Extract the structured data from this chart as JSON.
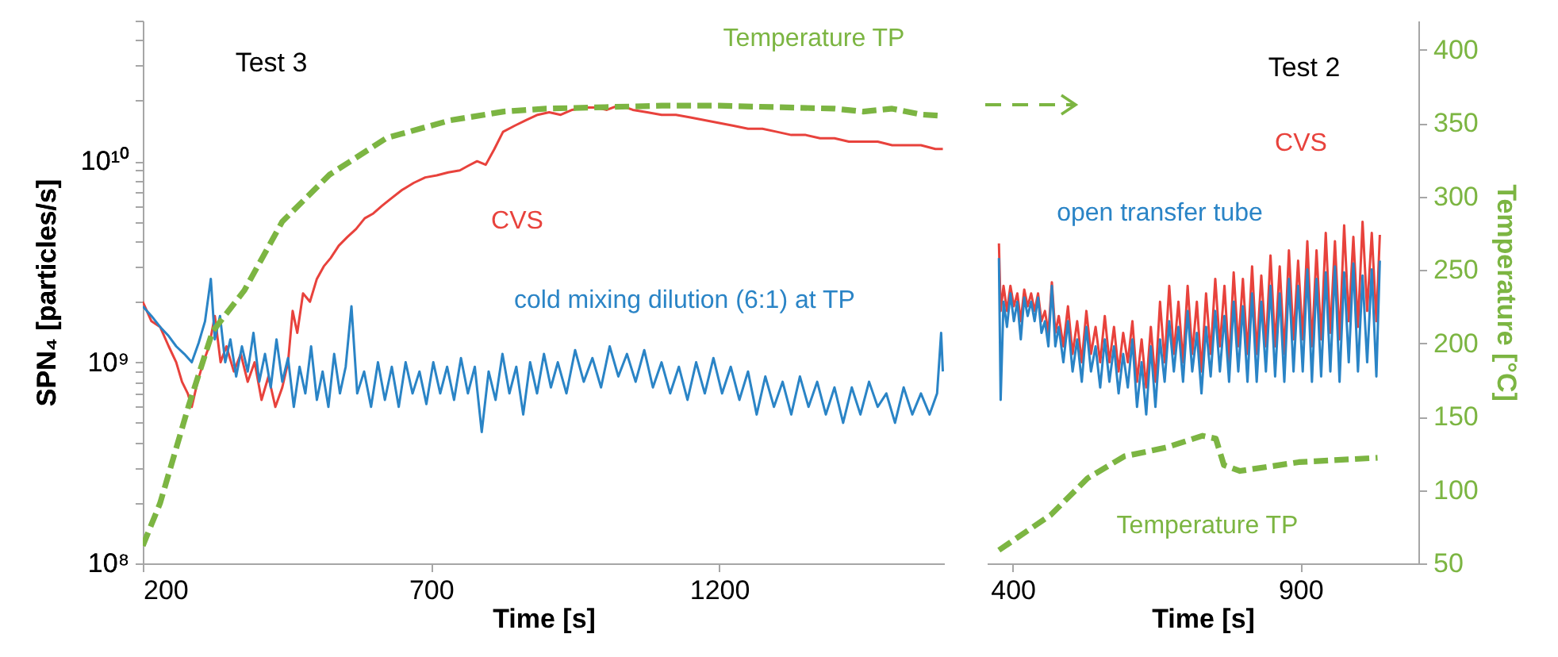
{
  "chart_data": [
    {
      "type": "line",
      "title": "Test 3",
      "xlabel": "Time [s]",
      "ylabel": "SPN₄ [particles/s]",
      "log": "y",
      "xlim": [
        200,
        1590
      ],
      "xticks": [
        200,
        700,
        1200
      ],
      "ylim": [
        100000000.0,
        50000000000.0
      ],
      "yticks": [
        {
          "value": 100000000.0,
          "label": "10⁸"
        },
        {
          "value": 200000000.0,
          "label": null
        },
        {
          "value": 300000000.0,
          "label": null
        },
        {
          "value": 400000000.0,
          "label": null
        },
        {
          "value": 500000000.0,
          "label": null
        },
        {
          "value": 600000000.0,
          "label": null
        },
        {
          "value": 700000000.0,
          "label": null
        },
        {
          "value": 800000000.0,
          "label": null
        },
        {
          "value": 900000000.0,
          "label": null
        },
        {
          "value": 1000000000.0,
          "label": "10⁹"
        },
        {
          "value": 2000000000.0,
          "label": null
        },
        {
          "value": 3000000000.0,
          "label": null
        },
        {
          "value": 4000000000.0,
          "label": null
        },
        {
          "value": 5000000000.0,
          "label": null
        },
        {
          "value": 6000000000.0,
          "label": null
        },
        {
          "value": 7000000000.0,
          "label": null
        },
        {
          "value": 8000000000.0,
          "label": null
        },
        {
          "value": 9000000000.0,
          "label": null
        },
        {
          "value": 10000000000.0,
          "label": "10¹⁰"
        },
        {
          "value": 20000000000.0,
          "label": null
        },
        {
          "value": 30000000000.0,
          "label": null
        },
        {
          "value": 40000000000.0,
          "label": null
        },
        {
          "value": 50000000000.0,
          "label": null
        }
      ],
      "y2lim": [
        50,
        420
      ],
      "tick_labels": [
        "x",
        "y"
      ],
      "series": [
        {
          "name": "CVS",
          "color": "#e8423c",
          "x": [
            200,
            215,
            230,
            245,
            258,
            268,
            278,
            285,
            295,
            305,
            315,
            325,
            335,
            345,
            358,
            370,
            382,
            394,
            406,
            418,
            430,
            442,
            452,
            460,
            468,
            478,
            490,
            502,
            514,
            526,
            540,
            555,
            570,
            585,
            600,
            615,
            630,
            650,
            670,
            690,
            710,
            730,
            750,
            765,
            780,
            795,
            810,
            825,
            845,
            865,
            885,
            905,
            925,
            945,
            965,
            985,
            1005,
            1027,
            1050,
            1075,
            1100,
            1125,
            1150,
            1175,
            1200,
            1225,
            1250,
            1275,
            1300,
            1325,
            1350,
            1375,
            1400,
            1425,
            1450,
            1475,
            1500,
            1525,
            1550,
            1575,
            1588
          ],
          "values": [
            2000000000.0,
            1600000000.0,
            1500000000.0,
            1200000000.0,
            1000000000.0,
            800000000.0,
            700000000.0,
            600000000.0,
            800000000.0,
            1000000000.0,
            1200000000.0,
            1700000000.0,
            1000000000.0,
            1200000000.0,
            900000000.0,
            1100000000.0,
            800000000.0,
            1000000000.0,
            650000000.0,
            850000000.0,
            600000000.0,
            750000000.0,
            1000000000.0,
            1800000000.0,
            1400000000.0,
            2200000000.0,
            2000000000.0,
            2600000000.0,
            3000000000.0,
            3300000000.0,
            3800000000.0,
            4200000000.0,
            4600000000.0,
            5200000000.0,
            5500000000.0,
            6000000000.0,
            6500000000.0,
            7200000000.0,
            7800000000.0,
            8300000000.0,
            8500000000.0,
            8800000000.0,
            9000000000.0,
            9500000000.0,
            10000000000.0,
            9600000000.0,
            11500000000.0,
            14000000000.0,
            15000000000.0,
            16000000000.0,
            17000000000.0,
            17500000000.0,
            17000000000.0,
            18000000000.0,
            18500000000.0,
            18500000000.0,
            18000000000.0,
            19000000000.0,
            18000000000.0,
            17500000000.0,
            17000000000.0,
            17000000000.0,
            16500000000.0,
            16000000000.0,
            15500000000.0,
            15000000000.0,
            14500000000.0,
            14500000000.0,
            14000000000.0,
            13500000000.0,
            13500000000.0,
            13000000000.0,
            13000000000.0,
            12500000000.0,
            12500000000.0,
            12500000000.0,
            12000000000.0,
            12000000000.0,
            12000000000.0,
            11500000000.0,
            11500000000.0
          ]
        },
        {
          "name": "cold mixing dilution (6:1) at TP",
          "color": "#2a84c6",
          "x": [
            200,
            215,
            230,
            245,
            258,
            272,
            285,
            297,
            308,
            318,
            325,
            334,
            343,
            352,
            362,
            372,
            382,
            392,
            402,
            412,
            422,
            432,
            442,
            452,
            462,
            472,
            482,
            492,
            502,
            512,
            522,
            532,
            542,
            552,
            562,
            572,
            584,
            596,
            608,
            620,
            632,
            644,
            656,
            668,
            680,
            692,
            704,
            716,
            728,
            740,
            752,
            764,
            776,
            788,
            800,
            812,
            824,
            836,
            848,
            860,
            872,
            884,
            896,
            908,
            920,
            935,
            950,
            965,
            980,
            995,
            1010,
            1025,
            1040,
            1055,
            1070,
            1085,
            1100,
            1115,
            1130,
            1145,
            1160,
            1175,
            1190,
            1205,
            1220,
            1235,
            1250,
            1265,
            1280,
            1295,
            1310,
            1325,
            1340,
            1355,
            1370,
            1385,
            1400,
            1415,
            1430,
            1445,
            1460,
            1475,
            1490,
            1505,
            1520,
            1535,
            1550,
            1565,
            1578,
            1585,
            1588
          ],
          "values": [
            1900000000.0,
            1700000000.0,
            1500000000.0,
            1350000000.0,
            1200000000.0,
            1100000000.0,
            1000000000.0,
            1250000000.0,
            1600000000.0,
            2600000000.0,
            1300000000.0,
            1700000000.0,
            1000000000.0,
            1300000000.0,
            850000000.0,
            1200000000.0,
            900000000.0,
            1400000000.0,
            800000000.0,
            1100000000.0,
            750000000.0,
            1300000000.0,
            800000000.0,
            1050000000.0,
            600000000.0,
            950000000.0,
            700000000.0,
            1200000000.0,
            650000000.0,
            900000000.0,
            600000000.0,
            1100000000.0,
            700000000.0,
            950000000.0,
            1900000000.0,
            700000000.0,
            900000000.0,
            600000000.0,
            1000000000.0,
            650000000.0,
            950000000.0,
            600000000.0,
            1000000000.0,
            700000000.0,
            900000000.0,
            620000000.0,
            1000000000.0,
            700000000.0,
            950000000.0,
            650000000.0,
            1050000000.0,
            700000000.0,
            950000000.0,
            450000000.0,
            900000000.0,
            650000000.0,
            1100000000.0,
            700000000.0,
            950000000.0,
            550000000.0,
            1000000000.0,
            700000000.0,
            1100000000.0,
            750000000.0,
            1000000000.0,
            700000000.0,
            1150000000.0,
            800000000.0,
            1050000000.0,
            750000000.0,
            1200000000.0,
            850000000.0,
            1100000000.0,
            800000000.0,
            1150000000.0,
            750000000.0,
            1000000000.0,
            700000000.0,
            950000000.0,
            650000000.0,
            1000000000.0,
            700000000.0,
            1050000000.0,
            700000000.0,
            950000000.0,
            650000000.0,
            900000000.0,
            550000000.0,
            850000000.0,
            600000000.0,
            800000000.0,
            550000000.0,
            850000000.0,
            600000000.0,
            800000000.0,
            550000000.0,
            750000000.0,
            500000000.0,
            750000000.0,
            550000000.0,
            800000000.0,
            600000000.0,
            700000000.0,
            500000000.0,
            750000000.0,
            550000000.0,
            700000000.0,
            550000000.0,
            700000000.0,
            1400000000.0,
            900000000.0
          ]
        },
        {
          "name": "Temperature TP",
          "color": "#7cb542",
          "line_style": "dashed",
          "axis": "y2",
          "x": [
            200,
            230,
            280,
            321,
            376,
            442,
            524,
            623,
            733,
            826,
            900,
            1000,
            1100,
            1200,
            1300,
            1400,
            1450,
            1500,
            1550,
            1588
          ],
          "values": [
            62,
            91,
            158,
            208,
            236,
            283,
            315,
            340,
            352,
            358,
            360,
            361,
            362,
            362,
            361,
            360,
            358,
            360,
            356,
            355
          ]
        }
      ]
    },
    {
      "type": "line",
      "title": "Test 2",
      "xlabel": "Time [s]",
      "y2label": "Temperature [°C]",
      "log": "y",
      "xlim": [
        355,
        1105
      ],
      "xticks": [
        400,
        900
      ],
      "ylim": [
        100000000.0,
        50000000000.0
      ],
      "y2lim": [
        50,
        420
      ],
      "y2ticks": [
        50,
        100,
        150,
        200,
        250,
        300,
        350,
        400
      ],
      "tick_labels": [
        "x",
        "y2"
      ],
      "series": [
        {
          "name": "CVS",
          "color": "#e8423c",
          "x": [
            376,
            379,
            384,
            390,
            396,
            402,
            408,
            414,
            420,
            426,
            432,
            438,
            444,
            450,
            456,
            462,
            468,
            474,
            480,
            488,
            496,
            504,
            512,
            520,
            528,
            536,
            544,
            552,
            560,
            568,
            576,
            584,
            592,
            600,
            608,
            616,
            624,
            632,
            640,
            648,
            656,
            664,
            672,
            680,
            688,
            696,
            704,
            712,
            720,
            728,
            736,
            744,
            752,
            760,
            768,
            776,
            784,
            792,
            800,
            808,
            816,
            824,
            832,
            840,
            848,
            856,
            864,
            872,
            880,
            888,
            896,
            904,
            912,
            920,
            928,
            936,
            944,
            952,
            960,
            968,
            976,
            984,
            992,
            1000,
            1008,
            1016,
            1024,
            1032,
            1038
          ],
          "values": [
            3900000000.0,
            1800000000.0,
            2400000000.0,
            1800000000.0,
            2400000000.0,
            1900000000.0,
            2200000000.0,
            1600000000.0,
            2300000000.0,
            1900000000.0,
            2200000000.0,
            1800000000.0,
            2200000000.0,
            1600000000.0,
            1800000000.0,
            1400000000.0,
            2500000000.0,
            1400000000.0,
            1700000000.0,
            1200000000.0,
            1900000000.0,
            1100000000.0,
            1600000000.0,
            1000000000.0,
            1800000000.0,
            1100000000.0,
            1500000000.0,
            1000000000.0,
            1700000000.0,
            1000000000.0,
            1500000000.0,
            900000000.0,
            1400000000.0,
            1000000000.0,
            1600000000.0,
            800000000.0,
            1300000000.0,
            750000000.0,
            1500000000.0,
            800000000.0,
            2000000000.0,
            1000000000.0,
            2400000000.0,
            1100000000.0,
            2000000000.0,
            1000000000.0,
            2400000000.0,
            1100000000.0,
            2000000000.0,
            900000000.0,
            2200000000.0,
            1100000000.0,
            2600000000.0,
            1200000000.0,
            2400000000.0,
            1000000000.0,
            2800000000.0,
            1200000000.0,
            2600000000.0,
            1100000000.0,
            3000000000.0,
            1100000000.0,
            2700000000.0,
            1200000000.0,
            3400000000.0,
            1200000000.0,
            3000000000.0,
            1100000000.0,
            3600000000.0,
            1300000000.0,
            3200000000.0,
            1300000000.0,
            4000000000.0,
            1200000000.0,
            3600000000.0,
            1300000000.0,
            4400000000.0,
            1400000000.0,
            4000000000.0,
            1300000000.0,
            4800000000.0,
            1600000000.0,
            4200000000.0,
            1500000000.0,
            5000000000.0,
            1800000000.0,
            4400000000.0,
            1600000000.0,
            4300000000.0
          ]
        },
        {
          "name": "open transfer tube",
          "color": "#2a84c6",
          "x": [
            376,
            379,
            384,
            390,
            396,
            402,
            408,
            414,
            420,
            426,
            432,
            438,
            444,
            450,
            456,
            462,
            468,
            474,
            480,
            488,
            496,
            504,
            512,
            520,
            528,
            536,
            544,
            552,
            560,
            568,
            576,
            584,
            592,
            600,
            608,
            616,
            624,
            632,
            640,
            648,
            656,
            664,
            672,
            680,
            688,
            696,
            704,
            712,
            720,
            728,
            736,
            744,
            752,
            760,
            768,
            776,
            784,
            792,
            800,
            808,
            816,
            824,
            832,
            840,
            848,
            856,
            864,
            872,
            880,
            888,
            896,
            904,
            912,
            920,
            928,
            936,
            944,
            952,
            960,
            968,
            976,
            984,
            992,
            1000,
            1008,
            1016,
            1024,
            1032,
            1038
          ],
          "values": [
            3300000000.0,
            650000000.0,
            2000000000.0,
            1500000000.0,
            2200000000.0,
            1600000000.0,
            2000000000.0,
            1300000000.0,
            2100000000.0,
            1700000000.0,
            2000000000.0,
            1600000000.0,
            2100000000.0,
            1400000000.0,
            1600000000.0,
            1200000000.0,
            2400000000.0,
            1200000000.0,
            1500000000.0,
            1000000000.0,
            1600000000.0,
            900000000.0,
            1300000000.0,
            800000000.0,
            1500000000.0,
            900000000.0,
            1200000000.0,
            750000000.0,
            1300000000.0,
            800000000.0,
            1200000000.0,
            700000000.0,
            1100000000.0,
            750000000.0,
            1300000000.0,
            600000000.0,
            1000000000.0,
            550000000.0,
            1200000000.0,
            600000000.0,
            1300000000.0,
            800000000.0,
            1600000000.0,
            900000000.0,
            1500000000.0,
            800000000.0,
            1800000000.0,
            900000000.0,
            1400000000.0,
            700000000.0,
            1500000000.0,
            850000000.0,
            1800000000.0,
            900000000.0,
            1700000000.0,
            800000000.0,
            2000000000.0,
            900000000.0,
            1900000000.0,
            800000000.0,
            2200000000.0,
            800000000.0,
            2000000000.0,
            900000000.0,
            2400000000.0,
            850000000.0,
            2200000000.0,
            800000000.0,
            2600000000.0,
            900000000.0,
            2400000000.0,
            900000000.0,
            2900000000.0,
            800000000.0,
            2600000000.0,
            850000000.0,
            2800000000.0,
            900000000.0,
            3000000000.0,
            800000000.0,
            2800000000.0,
            1000000000.0,
            3100000000.0,
            900000000.0,
            2700000000.0,
            1000000000.0,
            2900000000.0,
            850000000.0,
            3200000000.0
          ]
        },
        {
          "name": "Temperature TP",
          "color": "#7cb542",
          "line_style": "dashed",
          "axis": "y2",
          "x": [
            376,
            466,
            530,
            594,
            667,
            730,
            753,
            767,
            795,
            897,
            1034
          ],
          "values": [
            59,
            83,
            108,
            123,
            129,
            137,
            135,
            117,
            113,
            119,
            122
          ]
        }
      ]
    }
  ]
}
